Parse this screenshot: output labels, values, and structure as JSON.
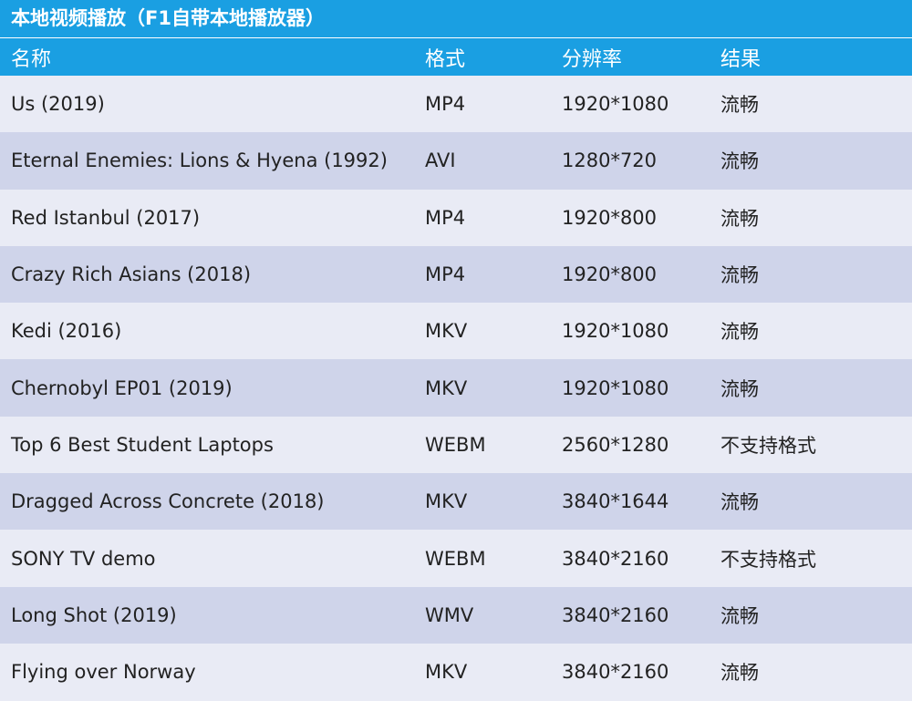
{
  "header": {
    "title": "本地视频播放（F1自带本地播放器）"
  },
  "table": {
    "columns": [
      "名称",
      "格式",
      "分辨率",
      "结果"
    ],
    "rows": [
      [
        "Us (2019)",
        "MP4",
        "1920*1080",
        "流畅"
      ],
      [
        "Eternal Enemies: Lions & Hyena (1992)",
        "AVI",
        "1280*720",
        "流畅"
      ],
      [
        "Red Istanbul (2017)",
        "MP4",
        "1920*800",
        "流畅"
      ],
      [
        "Crazy Rich Asians (2018)",
        "MP4",
        "1920*800",
        "流畅"
      ],
      [
        "Kedi (2016)",
        "MKV",
        "1920*1080",
        "流畅"
      ],
      [
        "Chernobyl EP01 (2019)",
        "MKV",
        "1920*1080",
        "流畅"
      ],
      [
        "Top 6 Best Student Laptops",
        "WEBM",
        "2560*1280",
        "不支持格式"
      ],
      [
        "Dragged Across Concrete (2018)",
        "MKV",
        "3840*1644",
        "流畅"
      ],
      [
        "SONY TV demo",
        "WEBM",
        "3840*2160",
        "不支持格式"
      ],
      [
        "Long Shot (2019)",
        "WMV",
        "3840*2160",
        "流畅"
      ],
      [
        "Flying over Norway",
        "MKV",
        "3840*2160",
        "流畅"
      ]
    ]
  }
}
